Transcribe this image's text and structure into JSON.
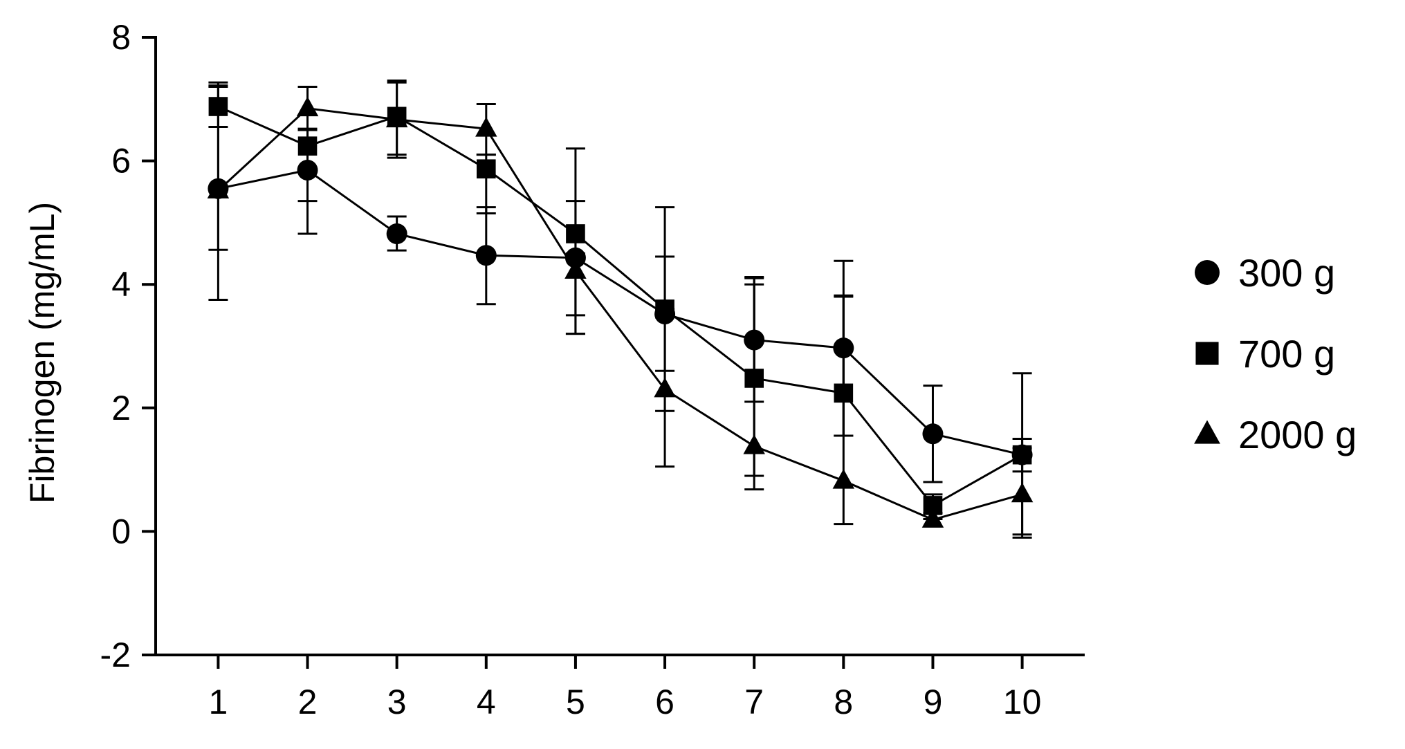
{
  "chart_data": {
    "type": "line",
    "title": "",
    "xlabel": "",
    "ylabel": "Fibrinogen (mg/mL)",
    "x": [
      1,
      2,
      3,
      4,
      5,
      6,
      7,
      8,
      9,
      10
    ],
    "xticks": [
      "1",
      "2",
      "3",
      "4",
      "5",
      "6",
      "7",
      "8",
      "9",
      "10"
    ],
    "xlim": [
      0.3,
      10.7
    ],
    "ylim": [
      -2,
      8
    ],
    "yticks": [
      "-2",
      "0",
      "2",
      "4",
      "6",
      "8"
    ],
    "grid": false,
    "legend_position": "right",
    "series": [
      {
        "name": "300 g",
        "marker": "circle",
        "color": "#000000",
        "values": [
          5.55,
          5.85,
          4.82,
          4.47,
          4.43,
          3.52,
          3.1,
          2.97,
          1.58,
          1.24
        ],
        "error_upper": [
          7.2,
          6.5,
          5.1,
          5.25,
          5.35,
          5.25,
          4.1,
          4.38,
          2.36,
          2.56
        ],
        "error_lower": [
          3.75,
          4.82,
          4.55,
          3.68,
          3.5,
          1.95,
          0.9,
          1.55,
          0.8,
          -0.05
        ]
      },
      {
        "name": "700 g",
        "marker": "square",
        "color": "#000000",
        "values": [
          6.88,
          6.24,
          6.72,
          5.87,
          4.82,
          3.6,
          2.48,
          2.24,
          0.42,
          1.24
        ],
        "error_upper": [
          7.22,
          6.5,
          7.27,
          6.1,
          6.2,
          4.45,
          4.0,
          3.8,
          0.6,
          1.5
        ],
        "error_lower": [
          6.55,
          5.35,
          6.1,
          5.15,
          3.2,
          2.6,
          2.1,
          1.55,
          0.2,
          0.97
        ]
      },
      {
        "name": "2000 g",
        "marker": "triangle",
        "color": "#000000",
        "values": [
          5.52,
          6.85,
          6.67,
          6.52,
          4.22,
          2.3,
          1.38,
          0.82,
          0.19,
          0.6
        ],
        "error_upper": [
          7.27,
          7.2,
          7.3,
          6.92,
          4.5,
          3.6,
          4.12,
          3.82,
          0.3,
          1.35
        ],
        "error_lower": [
          4.56,
          6.52,
          6.05,
          6.1,
          3.2,
          1.05,
          0.68,
          0.12,
          0.08,
          -0.1
        ]
      }
    ]
  }
}
